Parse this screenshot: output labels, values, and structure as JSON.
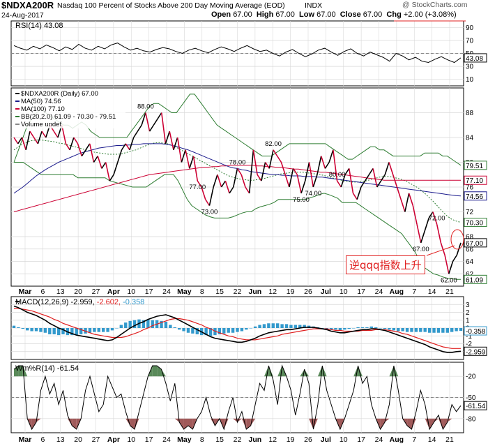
{
  "header": {
    "symbol": "$NDXA200R",
    "name": "Nasdaq 100 Percent of Stocks Above 200 Day Moving Average (EOD)",
    "exchange": "INDX",
    "watermark": "@ StockCharts.com",
    "date": "24-Aug-2017",
    "open_label": "Open",
    "open": "67.00",
    "high_label": "High",
    "high": "67.00",
    "low_label": "Low",
    "low": "67.00",
    "close_label": "Close",
    "close": "67.00",
    "chg_label": "Chg",
    "chg": "+2.00 (+3.08%)"
  },
  "colors": {
    "up": "#000000",
    "down": "#cc0033",
    "ma50": "#1a1a8c",
    "ma100": "#cc0033",
    "bb": "#2e7d32",
    "rsi": "#000000",
    "macd_line": "#000000",
    "macd_signal": "#e02020",
    "hist": "#3399cc",
    "wm_fill_top": "#5a8a5a",
    "wm_fill_bottom": "#a05a5a",
    "annotation": "#e02020",
    "grid": "#d8d8d8"
  },
  "chart_data": [
    {
      "type": "line",
      "panel": "rsi",
      "legend": "RSI(14) 43.08",
      "ylim": [
        0,
        100
      ],
      "yticks": [
        10,
        30,
        50,
        70,
        90
      ],
      "last_label": "43.08",
      "values": [
        62,
        58,
        55,
        61,
        57,
        63,
        59,
        54,
        60,
        56,
        64,
        58,
        55,
        61,
        57,
        63,
        66,
        60,
        55,
        58,
        54,
        52,
        56,
        59,
        57,
        53,
        50,
        55,
        58,
        54,
        51,
        56,
        60,
        57,
        53,
        58,
        62,
        57,
        53,
        55,
        50,
        46,
        52,
        56,
        50,
        45,
        49,
        55,
        58,
        52,
        47,
        53,
        57,
        50,
        46,
        52,
        48,
        44,
        38,
        50,
        46,
        40,
        44,
        38,
        36,
        41,
        45,
        40,
        36,
        43.08
      ]
    },
    {
      "type": "line",
      "panel": "price",
      "legend": [
        "$NDXA200R (Daily) 67.00",
        "MA(50) 74.56",
        "MA(100) 77.10",
        "BB(20,2.0) 61.09 - 70.30 - 79.51",
        "Volume undef"
      ],
      "ylim": [
        60,
        92
      ],
      "yticks": [
        62,
        64,
        66,
        68,
        72,
        76,
        80,
        84,
        88
      ],
      "x_labels": [
        "Mar",
        "6",
        "13",
        "20",
        "27",
        "Apr",
        "10",
        "17",
        "24",
        "May",
        "8",
        "15",
        "22",
        "Jun",
        "12",
        "19",
        "26",
        "Jul",
        "10",
        "17",
        "24",
        "Aug",
        "7",
        "14",
        "21"
      ],
      "annotations": [
        "88.00",
        "77.00",
        "73.00",
        "78.00",
        "82.00",
        "75.00",
        "74.00",
        "80.00",
        "72.00",
        "67.00",
        "62.00"
      ],
      "axis_labels": [
        "79.51",
        "77.10",
        "74.56",
        "70.30",
        "67.00",
        "61.09"
      ],
      "series": [
        {
          "name": "$NDXA200R",
          "values": [
            84,
            83,
            84,
            82,
            85,
            84,
            83,
            85,
            84,
            86,
            85,
            84,
            86,
            83,
            82,
            84,
            83,
            81,
            82,
            83,
            80,
            81,
            79,
            80,
            77,
            78,
            80,
            82,
            83,
            82,
            84,
            85,
            86,
            88,
            85,
            86,
            87,
            88,
            83,
            85,
            82,
            84,
            80,
            82,
            79,
            81,
            77,
            76,
            74,
            73,
            76,
            78,
            76,
            77,
            75,
            76,
            79,
            78,
            76,
            75,
            82,
            78,
            77,
            80,
            79,
            82,
            81,
            80,
            78,
            76,
            79,
            78,
            75,
            77,
            80,
            76,
            78,
            81,
            79,
            80,
            82,
            77,
            76,
            78,
            79,
            75,
            74,
            76,
            77,
            78,
            79,
            76,
            77,
            78,
            80,
            78,
            76,
            74,
            72,
            75,
            73,
            70,
            67,
            69,
            71,
            72,
            70,
            67,
            65,
            62,
            64,
            65,
            67
          ]
        },
        {
          "name": "MA(50)",
          "values": [
            75,
            75.5,
            76,
            76.6,
            77.2,
            77.8,
            78.3,
            78.8,
            79.2,
            79.6,
            80,
            80.3,
            80.6,
            80.9,
            81.2,
            81.5,
            81.7,
            81.9,
            82.1,
            82.3,
            82.4,
            82.5,
            82.6,
            82.7,
            82.7,
            82.8,
            82.8,
            82.9,
            82.9,
            83,
            83,
            83,
            83,
            83,
            82.9,
            82.8,
            82.6,
            82.4,
            82.2,
            82,
            81.7,
            81.4,
            81.1,
            80.8,
            80.5,
            80.2,
            79.9,
            79.6,
            79.3,
            79.1,
            79,
            78.8,
            78.7,
            78.5,
            78.4,
            78.3,
            78.2,
            78.1,
            78,
            78,
            77.9,
            77.9,
            77.8,
            77.8,
            77.8,
            77.7,
            77.7,
            77.7,
            77.6,
            77.6,
            77.5,
            77.4,
            77.3,
            77.2,
            77.1,
            77,
            76.9,
            76.8,
            76.7,
            76.6,
            76.5,
            76.4,
            76.3,
            76.2,
            76.1,
            76,
            75.9,
            75.8,
            75.7,
            75.6,
            75.5,
            75.4,
            75.3,
            75.2,
            75.1,
            75,
            74.9,
            74.8,
            74.7,
            74.6,
            74.56
          ]
        },
        {
          "name": "MA(100)",
          "values": [
            72,
            72.2,
            72.4,
            72.6,
            72.8,
            73,
            73.2,
            73.4,
            73.6,
            73.8,
            74,
            74.2,
            74.4,
            74.6,
            74.8,
            75,
            75.2,
            75.4,
            75.6,
            75.8,
            76,
            76.2,
            76.4,
            76.6,
            76.8,
            77,
            77.2,
            77.4,
            77.6,
            77.8,
            78,
            78.1,
            78.2,
            78.3,
            78.4,
            78.5,
            78.6,
            78.7,
            78.8,
            78.9,
            79,
            79.1,
            79.2,
            79.2,
            79.3,
            79.3,
            79.4,
            79.4,
            79.5,
            79.5,
            79.5,
            79.5,
            79.5,
            79.5,
            79.4,
            79.4,
            79.3,
            79.3,
            79.2,
            79.2,
            79.1,
            79,
            78.9,
            78.9,
            78.8,
            78.7,
            78.6,
            78.5,
            78.4,
            78.4,
            78.3,
            78.2,
            78.1,
            78,
            77.9,
            77.8,
            77.7,
            77.6,
            77.5,
            77.4,
            77.3,
            77.2,
            77.1,
            77.1,
            77.1,
            77.1,
            77.1,
            77.1,
            77.1,
            77.1,
            77.1,
            77.1,
            77.1,
            77.1,
            77.1,
            77.1,
            77.1,
            77.1,
            77.1,
            77.1
          ]
        },
        {
          "name": "BB upper",
          "values": [
            80,
            82,
            84,
            86,
            87,
            88,
            88.5,
            88,
            87.5,
            87,
            86.5,
            86,
            86,
            85.5,
            86,
            86.5,
            86,
            85,
            84.5,
            84,
            84,
            84,
            84,
            84,
            84,
            84,
            85,
            86,
            87,
            88,
            89,
            89.5,
            89.5,
            89,
            88.5,
            88,
            88,
            89,
            90,
            91,
            91,
            90,
            89,
            88,
            87,
            86,
            85.5,
            85,
            84.5,
            84,
            83.5,
            83,
            82.5,
            82,
            81.5,
            81,
            81,
            81,
            81.5,
            82,
            82.5,
            83,
            83,
            83,
            83,
            83,
            83,
            83,
            83,
            83,
            82.5,
            82,
            81.5,
            81,
            80.5,
            80.5,
            81,
            81.5,
            82,
            82.5,
            82.5,
            82,
            82,
            81.5,
            81,
            81,
            81,
            81,
            81,
            81,
            81,
            81.5,
            81.5,
            81.5,
            81.5,
            81,
            81,
            80.5,
            80,
            79.51
          ]
        },
        {
          "name": "BB middle",
          "values": [
            82,
            82.5,
            83,
            83.3,
            83.5,
            83.6,
            83.6,
            83.5,
            83.4,
            83.3,
            83.1,
            83,
            82.8,
            82.6,
            82.4,
            82.2,
            82,
            81.8,
            81.6,
            81.5,
            81.4,
            81.3,
            81.3,
            81.3,
            81.4,
            81.6,
            81.8,
            82,
            82.3,
            82.6,
            82.9,
            83.1,
            83.2,
            83.1,
            83,
            82.7,
            82.4,
            82,
            81.6,
            81.2,
            80.8,
            80.4,
            80,
            79.6,
            79.2,
            78.8,
            78.4,
            78,
            77.7,
            77.5,
            77.3,
            77.2,
            77.1,
            77.1,
            77.2,
            77.3,
            77.5,
            77.7,
            77.9,
            78.1,
            78.2,
            78.3,
            78.4,
            78.4,
            78.4,
            78.3,
            78.2,
            78.1,
            78,
            77.8,
            77.6,
            77.4,
            77.2,
            77,
            76.9,
            76.8,
            76.8,
            76.9,
            77,
            77.2,
            77.4,
            77.6,
            77.7,
            77.7,
            77.6,
            77.4,
            77.2,
            76.9,
            76.5,
            76.1,
            75.6,
            75,
            74.3,
            73.6,
            72.8,
            72,
            71.3,
            70.8,
            70.5,
            70.3
          ]
        },
        {
          "name": "BB lower",
          "values": [
            80,
            80,
            80,
            79.5,
            79,
            78.5,
            78,
            78,
            78,
            78,
            78,
            78,
            78,
            78,
            77.5,
            77.5,
            77.5,
            77.5,
            77.5,
            77.5,
            77.5,
            77,
            76.8,
            76.6,
            76.4,
            76.2,
            76,
            76,
            76,
            76,
            76.5,
            77,
            77.5,
            78,
            78,
            78,
            77,
            75.5,
            74,
            73,
            72.5,
            72,
            71.5,
            71.2,
            71,
            71,
            71,
            71,
            71.2,
            71.5,
            71.8,
            72,
            72,
            72.5,
            72.8,
            73,
            73.2,
            73.5,
            74,
            74,
            74,
            74,
            74,
            74,
            74,
            74.3,
            74.5,
            74.8,
            75,
            74.8,
            74.5,
            74.2,
            73.5,
            73.5,
            73.5,
            73.5,
            73,
            72.5,
            72,
            71.5,
            71,
            70.5,
            70,
            69.5,
            69,
            68.5,
            67.5,
            66.5,
            65.5,
            64,
            63,
            62.5,
            62,
            61.8,
            61.5,
            61.3,
            61.2,
            61.1,
            61.09
          ]
        }
      ]
    },
    {
      "type": "line",
      "panel": "macd",
      "legend_prefix": "MACD(12,26,9)",
      "legend_macd": "-2.959",
      "legend_signal": "-2.602",
      "legend_hist": "-0.358",
      "ylim": [
        -4,
        4
      ],
      "yticks": [
        3,
        2,
        1,
        0,
        -1,
        -2,
        -3
      ],
      "last_labels": [
        "-0.358",
        "-2.959"
      ],
      "series": [
        {
          "name": "MACD",
          "values": [
            2.8,
            2.6,
            2.3,
            2,
            1.8,
            1.6,
            1.3,
            1,
            0.6,
            0.3,
            0,
            -0.2,
            -0.5,
            -0.7,
            -0.9,
            -1,
            -1.1,
            -1.2,
            -1.3,
            -1.4,
            -1.5,
            -1.6,
            -1.5,
            -1.2,
            -0.8,
            -0.4,
            0,
            0.3,
            0.6,
            0.8,
            1.1,
            1.3,
            1.5,
            1.6,
            1.7,
            1.5,
            1.3,
            1,
            0.7,
            0.4,
            0.1,
            -0.2,
            -0.5,
            -0.8,
            -1.1,
            -1.3,
            -1.4,
            -1.5,
            -1.6,
            -1.7,
            -1.8,
            -1.8,
            -1.7,
            -1.5,
            -1.3,
            -1,
            -0.8,
            -0.6,
            -0.5,
            -0.4,
            -0.3,
            -0.2,
            -0.2,
            -0.1,
            0,
            0.1,
            0.1,
            0.1,
            0,
            -0.1,
            -0.2,
            -0.4,
            -0.5,
            -0.6,
            -0.6,
            -0.5,
            -0.4,
            -0.3,
            -0.2,
            -0.2,
            -0.1,
            -0.1,
            -0.2,
            -0.3,
            -0.5,
            -0.7,
            -0.9,
            -1.1,
            -1.3,
            -1.5,
            -1.7,
            -1.9,
            -2.1,
            -2.4,
            -2.6,
            -2.8,
            -3,
            -3.1,
            -3.1,
            -3,
            -2.959
          ]
        },
        {
          "name": "Signal",
          "values": [
            2.5,
            2.5,
            2.4,
            2.3,
            2.2,
            2,
            1.8,
            1.6,
            1.4,
            1.1,
            0.9,
            0.6,
            0.4,
            0.2,
            0,
            -0.2,
            -0.4,
            -0.6,
            -0.8,
            -0.9,
            -1,
            -1.1,
            -1.2,
            -1.2,
            -1.2,
            -1.1,
            -0.9,
            -0.7,
            -0.5,
            -0.2,
            0,
            0.3,
            0.5,
            0.7,
            0.9,
            1.1,
            1.2,
            1.2,
            1.1,
            1,
            0.8,
            0.6,
            0.4,
            0.1,
            -0.1,
            -0.4,
            -0.6,
            -0.8,
            -1,
            -1.1,
            -1.3,
            -1.4,
            -1.5,
            -1.5,
            -1.5,
            -1.4,
            -1.3,
            -1.2,
            -1.1,
            -1,
            -0.8,
            -0.7,
            -0.6,
            -0.5,
            -0.4,
            -0.3,
            -0.2,
            -0.1,
            -0.1,
            -0.1,
            -0.1,
            -0.2,
            -0.3,
            -0.3,
            -0.4,
            -0.4,
            -0.4,
            -0.4,
            -0.3,
            -0.3,
            -0.3,
            -0.2,
            -0.2,
            -0.2,
            -0.3,
            -0.4,
            -0.5,
            -0.7,
            -0.8,
            -1,
            -1.2,
            -1.4,
            -1.6,
            -1.8,
            -2,
            -2.2,
            -2.4,
            -2.5,
            -2.6,
            -2.6,
            -2.602
          ]
        }
      ]
    },
    {
      "type": "area",
      "panel": "williams",
      "legend": "Wm%R(14) -61.54",
      "ylim": [
        -100,
        0
      ],
      "yticks": [
        -20,
        -50,
        -80
      ],
      "last_label": "-61.54",
      "values": [
        -10,
        -5,
        -5,
        -80,
        -95,
        -85,
        -40,
        -20,
        -45,
        -30,
        -60,
        -40,
        -75,
        -90,
        -95,
        -80,
        -40,
        -20,
        -45,
        -70,
        -60,
        -20,
        -35,
        -50,
        -45,
        -70,
        -90,
        -95,
        -70,
        -45,
        -20,
        -5,
        -5,
        -10,
        -30,
        -55,
        -30,
        -85,
        -95,
        -90,
        -95,
        -80,
        -70,
        -50,
        -75,
        -90,
        -80,
        -95,
        -70,
        -50,
        -85,
        -70,
        -95,
        -90,
        -60,
        -30,
        -40,
        -5,
        -25,
        -60,
        -5,
        -20,
        -40,
        -75,
        -45,
        -10,
        -30,
        -95,
        -60,
        -5,
        -40,
        -60,
        -80,
        -95,
        -80,
        -60,
        -40,
        -5,
        -30,
        -20,
        -60,
        -80,
        -95,
        -85,
        -60,
        -5,
        -40,
        -80,
        -90,
        -95,
        -70,
        -40,
        -60,
        -95,
        -85,
        -75,
        -95,
        -85,
        -60,
        -70,
        -61.54
      ]
    }
  ],
  "overlay": {
    "text": "逆qqq指数上升"
  }
}
